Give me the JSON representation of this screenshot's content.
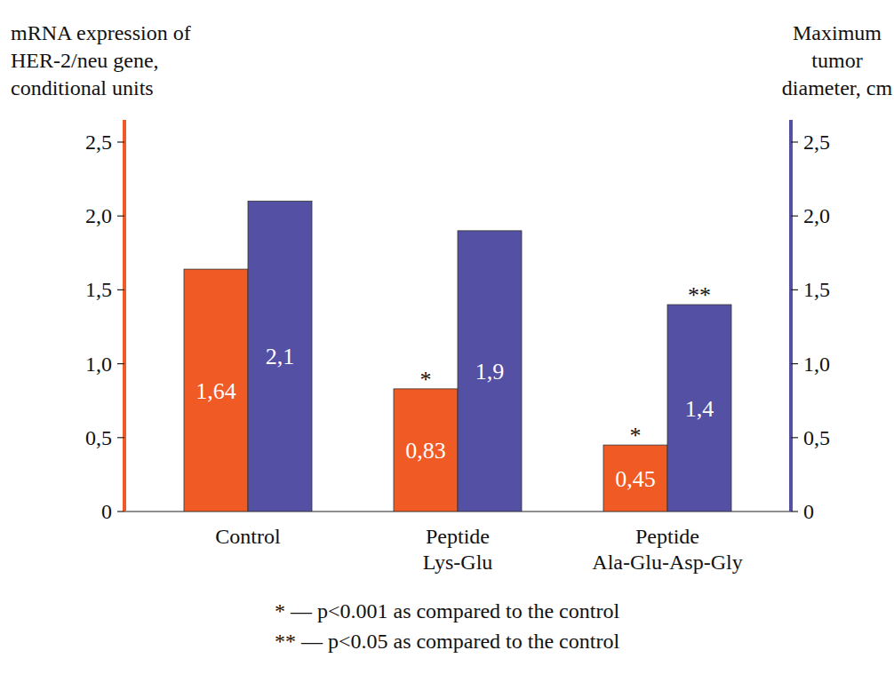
{
  "chart_data": {
    "type": "bar",
    "y_label": "mRNA expression of\nHER-2/neu gene,\nconditional units",
    "y2_label": "Maximum\ntumor\ndiameter, cm",
    "categories": [
      "Control",
      "Peptide\nLys-Glu",
      "Peptide\nAla-Glu-Asp-Gly"
    ],
    "series": [
      {
        "color": "#f05a24",
        "values": [
          1.64,
          0.83,
          0.45
        ],
        "value_labels": [
          "1,64",
          "0,83",
          "0,45"
        ],
        "annotations": [
          null,
          "*",
          "*"
        ]
      },
      {
        "color": "#5450a3",
        "axis": "y2",
        "values": [
          2.1,
          1.9,
          1.4
        ],
        "value_labels": [
          "2,1",
          "1,9",
          "1,4"
        ],
        "annotations": [
          null,
          null,
          "**"
        ]
      }
    ],
    "ylim": [
      0,
      2.65
    ],
    "yticks": [
      0,
      {
        "value": 0.5,
        "label": "0,5"
      },
      {
        "value": 1,
        "label": "1,0"
      },
      {
        "value": 1.5,
        "label": "1,5"
      },
      {
        "value": 2,
        "label": "2,0"
      },
      {
        "value": 2.5,
        "label": "2,5"
      }
    ],
    "y2lim": [
      0,
      2.65
    ],
    "y2ticks": [
      0,
      {
        "value": 0.5,
        "label": "0,5"
      },
      {
        "value": 1,
        "label": "1,0"
      },
      {
        "value": 1.5,
        "label": "1,5"
      },
      {
        "value": 2,
        "label": "2,0"
      },
      {
        "value": 2.5,
        "label": "2,5"
      }
    ],
    "grid": false,
    "data_labels": true,
    "notes": [
      "* — p<0.001 as compared to the control",
      "** — p<0.05 as compared to the control"
    ]
  }
}
